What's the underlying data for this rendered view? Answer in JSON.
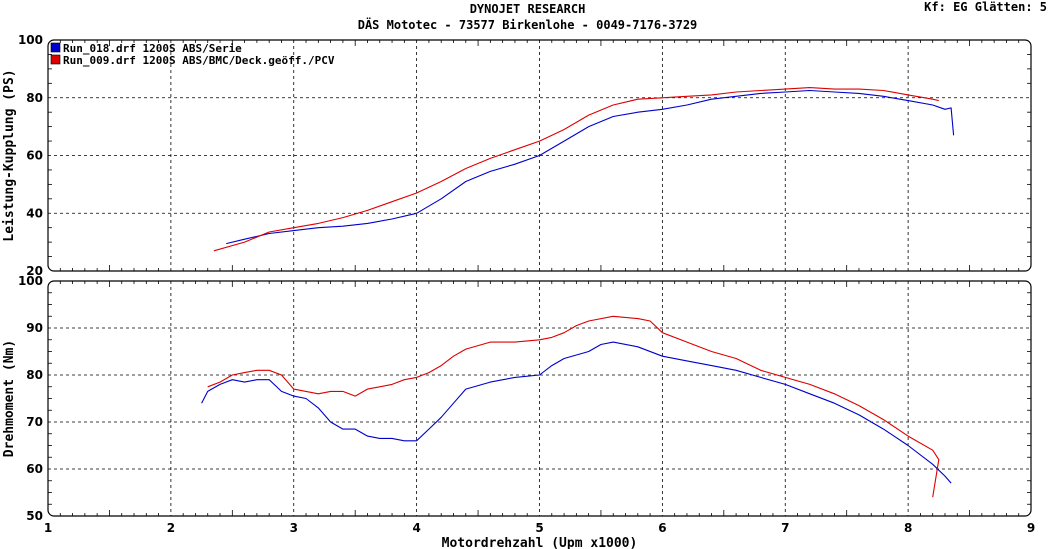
{
  "header": {
    "title": "DYNOJET RESEARCH",
    "subtitle": "DÄS Mototec - 73577 Birkenlohe  - 0049-7176-3729",
    "settings": "Kf: EG  Glätten: 5"
  },
  "colors": {
    "series_1": "#0000cc",
    "series_2": "#dd0000",
    "grid": "#000000",
    "frame": "#000000"
  },
  "chart_data": [
    {
      "type": "line",
      "ylabel": "Leistung-Kupplung (PS)",
      "xlabel": "",
      "xlim": [
        1,
        9
      ],
      "ylim": [
        20,
        100
      ],
      "xticks": [
        "1",
        "2",
        "3",
        "4",
        "5",
        "6",
        "7",
        "8",
        "9"
      ],
      "yticks": [
        "20",
        "40",
        "60",
        "80",
        "100"
      ],
      "grid": true,
      "legend": "top-left",
      "series": [
        {
          "name": "Run_018.drf 1200S ABS/Serie",
          "x": [
            2.45,
            2.6,
            2.8,
            3.0,
            3.2,
            3.4,
            3.6,
            3.8,
            4.0,
            4.2,
            4.4,
            4.6,
            4.8,
            5.0,
            5.2,
            5.4,
            5.6,
            5.8,
            6.0,
            6.2,
            6.4,
            6.6,
            6.8,
            7.0,
            7.2,
            7.4,
            7.6,
            7.8,
            8.0,
            8.2,
            8.3,
            8.35,
            8.37
          ],
          "y": [
            29.5,
            31.0,
            33.0,
            34.0,
            35.0,
            35.5,
            36.5,
            38.0,
            40.0,
            45.0,
            51.0,
            54.5,
            57.0,
            60.0,
            65.0,
            70.0,
            73.5,
            75.0,
            76.0,
            77.5,
            79.5,
            80.5,
            81.5,
            82.0,
            82.5,
            82.0,
            81.5,
            80.5,
            79.0,
            77.5,
            76.0,
            76.5,
            67.0
          ]
        },
        {
          "name": "Run_009.drf 1200S ABS/BMC/Deck.geöff./PCV",
          "x": [
            2.35,
            2.6,
            2.8,
            3.0,
            3.2,
            3.4,
            3.6,
            3.8,
            4.0,
            4.2,
            4.4,
            4.6,
            4.8,
            5.0,
            5.2,
            5.4,
            5.6,
            5.8,
            6.0,
            6.2,
            6.4,
            6.6,
            6.8,
            7.0,
            7.2,
            7.4,
            7.6,
            7.8,
            8.0,
            8.2,
            8.25
          ],
          "y": [
            27.0,
            30.0,
            33.5,
            35.0,
            36.5,
            38.5,
            41.0,
            44.0,
            47.0,
            51.0,
            55.5,
            59.0,
            62.0,
            65.0,
            69.0,
            74.0,
            77.5,
            79.5,
            80.0,
            80.5,
            81.0,
            82.0,
            82.5,
            83.0,
            83.5,
            83.0,
            83.0,
            82.5,
            81.0,
            79.5,
            79.0
          ]
        }
      ]
    },
    {
      "type": "line",
      "ylabel": "Drehmoment (Nm)",
      "xlabel": "Motordrehzahl (Upm x1000)",
      "xlim": [
        1,
        9
      ],
      "ylim": [
        50,
        100
      ],
      "xticks": [
        "1",
        "2",
        "3",
        "4",
        "5",
        "6",
        "7",
        "8",
        "9"
      ],
      "yticks": [
        "50",
        "60",
        "70",
        "80",
        "90",
        "100"
      ],
      "grid": true,
      "series": [
        {
          "name": "Run_018.drf 1200S ABS/Serie",
          "x": [
            2.25,
            2.3,
            2.4,
            2.5,
            2.6,
            2.7,
            2.8,
            2.9,
            3.0,
            3.1,
            3.2,
            3.3,
            3.4,
            3.5,
            3.6,
            3.7,
            3.8,
            3.9,
            4.0,
            4.1,
            4.2,
            4.3,
            4.4,
            4.6,
            4.8,
            5.0,
            5.1,
            5.2,
            5.4,
            5.5,
            5.6,
            5.8,
            6.0,
            6.2,
            6.4,
            6.6,
            6.8,
            7.0,
            7.2,
            7.4,
            7.6,
            7.8,
            8.0,
            8.2,
            8.3,
            8.35
          ],
          "y": [
            74.0,
            76.5,
            78.0,
            79.0,
            78.5,
            79.0,
            79.0,
            76.5,
            75.5,
            75.0,
            73.0,
            70.0,
            68.5,
            68.5,
            67.0,
            66.5,
            66.5,
            66.0,
            66.0,
            68.5,
            71.0,
            74.0,
            77.0,
            78.5,
            79.5,
            80.0,
            82.0,
            83.5,
            85.0,
            86.5,
            87.0,
            86.0,
            84.0,
            83.0,
            82.0,
            81.0,
            79.5,
            78.0,
            76.0,
            74.0,
            71.5,
            68.5,
            65.0,
            61.0,
            58.5,
            57.0
          ]
        },
        {
          "name": "Run_009.drf 1200S ABS/BMC/Deck.geöff./PCV",
          "x": [
            2.3,
            2.4,
            2.5,
            2.6,
            2.7,
            2.8,
            2.9,
            3.0,
            3.1,
            3.2,
            3.3,
            3.4,
            3.5,
            3.6,
            3.7,
            3.8,
            3.9,
            4.0,
            4.1,
            4.2,
            4.3,
            4.4,
            4.6,
            4.8,
            5.0,
            5.1,
            5.2,
            5.3,
            5.4,
            5.6,
            5.8,
            5.9,
            6.0,
            6.2,
            6.4,
            6.6,
            6.8,
            7.0,
            7.2,
            7.4,
            7.6,
            7.8,
            8.0,
            8.2,
            8.25,
            8.2
          ],
          "y": [
            77.5,
            78.5,
            80.0,
            80.5,
            81.0,
            81.0,
            80.0,
            77.0,
            76.5,
            76.0,
            76.5,
            76.5,
            75.5,
            77.0,
            77.5,
            78.0,
            79.0,
            79.5,
            80.5,
            82.0,
            84.0,
            85.5,
            87.0,
            87.0,
            87.5,
            88.0,
            89.0,
            90.5,
            91.5,
            92.5,
            92.0,
            91.5,
            89.0,
            87.0,
            85.0,
            83.5,
            81.0,
            79.5,
            78.0,
            76.0,
            73.5,
            70.5,
            67.0,
            64.0,
            62.0,
            54.0
          ]
        }
      ]
    }
  ]
}
